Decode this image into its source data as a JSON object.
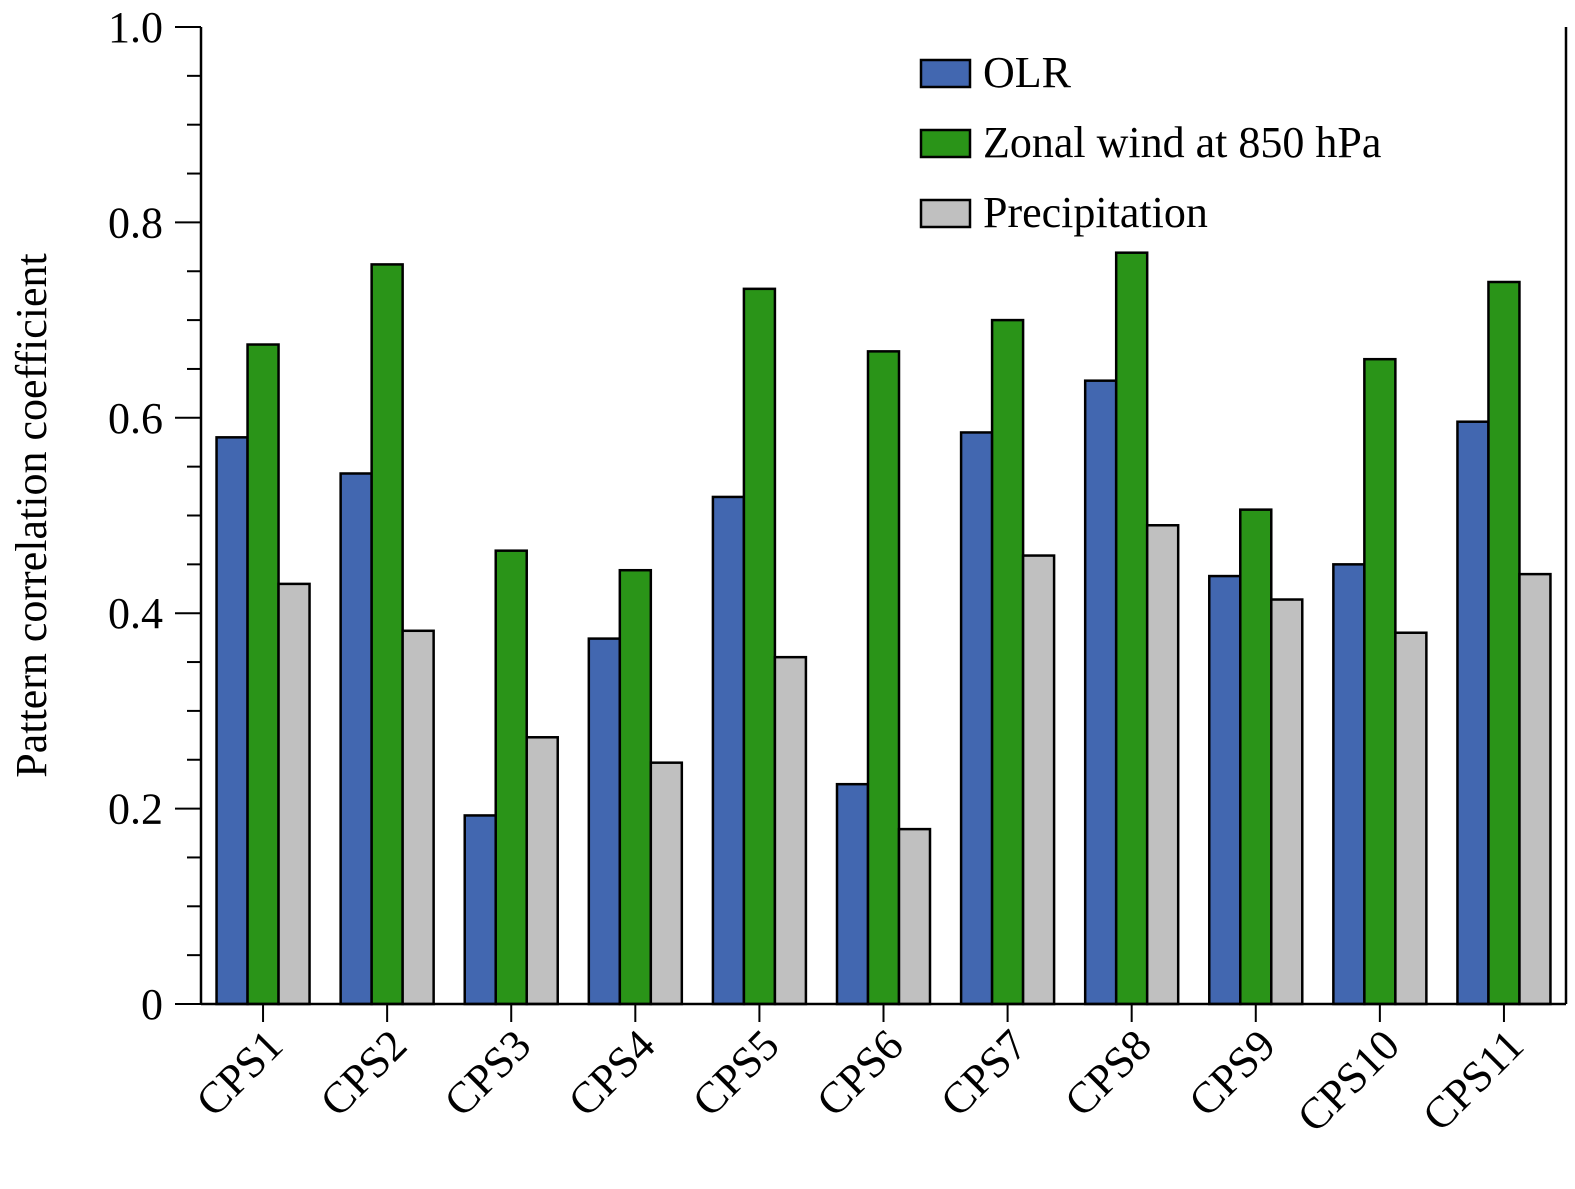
{
  "chart_data": {
    "type": "bar",
    "title": "",
    "xlabel": "",
    "ylabel": "Pattern correlation coefficient",
    "ylim": [
      0,
      1.0
    ],
    "yticks": [
      0,
      0.2,
      0.4,
      0.6,
      0.8,
      1.0
    ],
    "ytick_labels": [
      "0",
      "0.2",
      "0.4",
      "0.6",
      "0.8",
      "1.0"
    ],
    "legend_position": "top-right",
    "grid": false,
    "categories": [
      "CPS1",
      "CPS2",
      "CPS3",
      "CPS4",
      "CPS5",
      "CPS6",
      "CPS7",
      "CPS8",
      "CPS9",
      "CPS10",
      "CPS11"
    ],
    "series": [
      {
        "name": "OLR",
        "color": "#4267b0",
        "values": [
          0.58,
          0.543,
          0.193,
          0.374,
          0.519,
          0.225,
          0.585,
          0.638,
          0.438,
          0.45,
          0.596
        ]
      },
      {
        "name": "Zonal wind at 850 hPa",
        "color": "#2a9418",
        "values": [
          0.675,
          0.757,
          0.464,
          0.444,
          0.732,
          0.668,
          0.7,
          0.769,
          0.506,
          0.66,
          0.739
        ]
      },
      {
        "name": "Precipitation",
        "color": "#c0c0c0",
        "values": [
          0.43,
          0.382,
          0.273,
          0.247,
          0.355,
          0.179,
          0.459,
          0.49,
          0.414,
          0.38,
          0.44
        ]
      }
    ]
  }
}
